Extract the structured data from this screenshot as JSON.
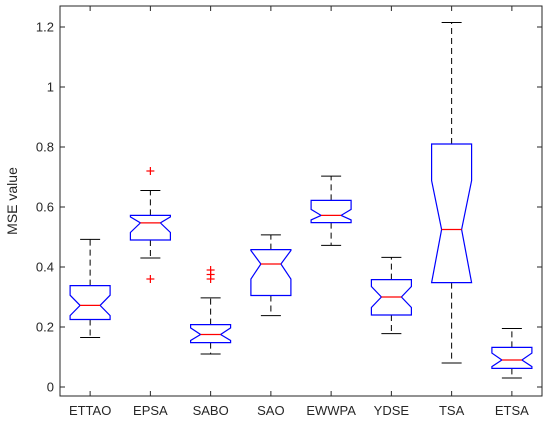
{
  "chart_data": {
    "type": "boxplot",
    "title": "",
    "xlabel": "",
    "ylabel": "MSE value",
    "ylim": [
      -0.03,
      1.27
    ],
    "yticks": [
      0,
      0.2,
      0.4,
      0.6,
      0.8,
      1,
      1.2
    ],
    "ytick_labels": [
      "0",
      "0.2",
      "0.4",
      "0.6",
      "0.8",
      "1",
      "1.2"
    ],
    "grid": false,
    "notched": true,
    "colors": {
      "box": "#0000ff",
      "median": "#ff0000",
      "whisker": "#000000",
      "outlier": "#ff0000",
      "axis": "#262626"
    },
    "categories": [
      "ETTAO",
      "EPSA",
      "SABO",
      "SAO",
      "EWWPA",
      "YDSE",
      "TSA",
      "ETSA"
    ],
    "boxes": [
      {
        "category": "ETTAO",
        "whisker_low": 0.165,
        "q1": 0.225,
        "median": 0.272,
        "q3": 0.338,
        "whisker_high": 0.492,
        "notch_low": 0.238,
        "notch_high": 0.306,
        "outliers": []
      },
      {
        "category": "EPSA",
        "whisker_low": 0.43,
        "q1": 0.49,
        "median": 0.547,
        "q3": 0.572,
        "whisker_high": 0.655,
        "notch_low": 0.515,
        "notch_high": 0.567,
        "outliers": [
          0.72,
          0.36
        ]
      },
      {
        "category": "SABO",
        "whisker_low": 0.11,
        "q1": 0.148,
        "median": 0.175,
        "q3": 0.208,
        "whisker_high": 0.297,
        "notch_low": 0.155,
        "notch_high": 0.197,
        "outliers": [
          0.39,
          0.375,
          0.36
        ]
      },
      {
        "category": "SAO",
        "whisker_low": 0.238,
        "q1": 0.305,
        "median": 0.41,
        "q3": 0.458,
        "whisker_high": 0.507,
        "notch_low": 0.36,
        "notch_high": 0.455,
        "outliers": []
      },
      {
        "category": "EWWPA",
        "whisker_low": 0.472,
        "q1": 0.548,
        "median": 0.572,
        "q3": 0.622,
        "whisker_high": 0.703,
        "notch_low": 0.557,
        "notch_high": 0.592,
        "outliers": []
      },
      {
        "category": "YDSE",
        "whisker_low": 0.178,
        "q1": 0.24,
        "median": 0.3,
        "q3": 0.358,
        "whisker_high": 0.432,
        "notch_low": 0.265,
        "notch_high": 0.335,
        "outliers": []
      },
      {
        "category": "TSA",
        "whisker_low": 0.08,
        "q1": 0.348,
        "median": 0.525,
        "q3": 0.81,
        "whisker_high": 1.215,
        "notch_low": 0.348,
        "notch_high": 0.688,
        "outliers": []
      },
      {
        "category": "ETSA",
        "whisker_low": 0.03,
        "q1": 0.062,
        "median": 0.09,
        "q3": 0.132,
        "whisker_high": 0.195,
        "notch_low": 0.068,
        "notch_high": 0.113,
        "outliers": []
      }
    ]
  }
}
